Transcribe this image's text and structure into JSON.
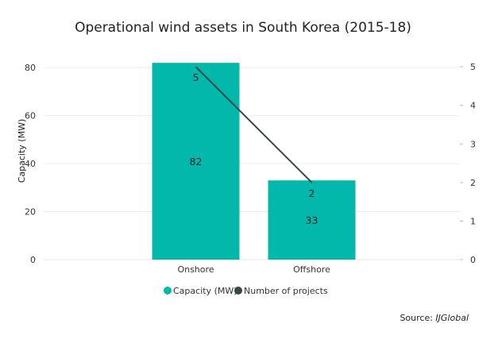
{
  "chart_data": {
    "type": "bar",
    "title": "Operational wind assets in South Korea (2015-18)",
    "categories": [
      "Onshore",
      "Offshore"
    ],
    "series": [
      {
        "name": "Capacity (MW)",
        "type": "bar",
        "axis": "left",
        "color": "#01B8AA",
        "values": [
          82,
          33
        ]
      },
      {
        "name": "Number of projects",
        "type": "line",
        "axis": "right",
        "color": "#374649",
        "values": [
          5,
          2
        ]
      }
    ],
    "ylabel": "Capacity (MW)",
    "ylim": [
      0,
      90
    ],
    "y_ticks": [
      0,
      20,
      40,
      60,
      80
    ],
    "y2lim": [
      0,
      5.6
    ],
    "y2_ticks": [
      0,
      1,
      2,
      3,
      4,
      5
    ],
    "grid": true,
    "legend_position": "bottom"
  },
  "source": {
    "prefix": "Source: ",
    "name": "IJGlobal"
  }
}
